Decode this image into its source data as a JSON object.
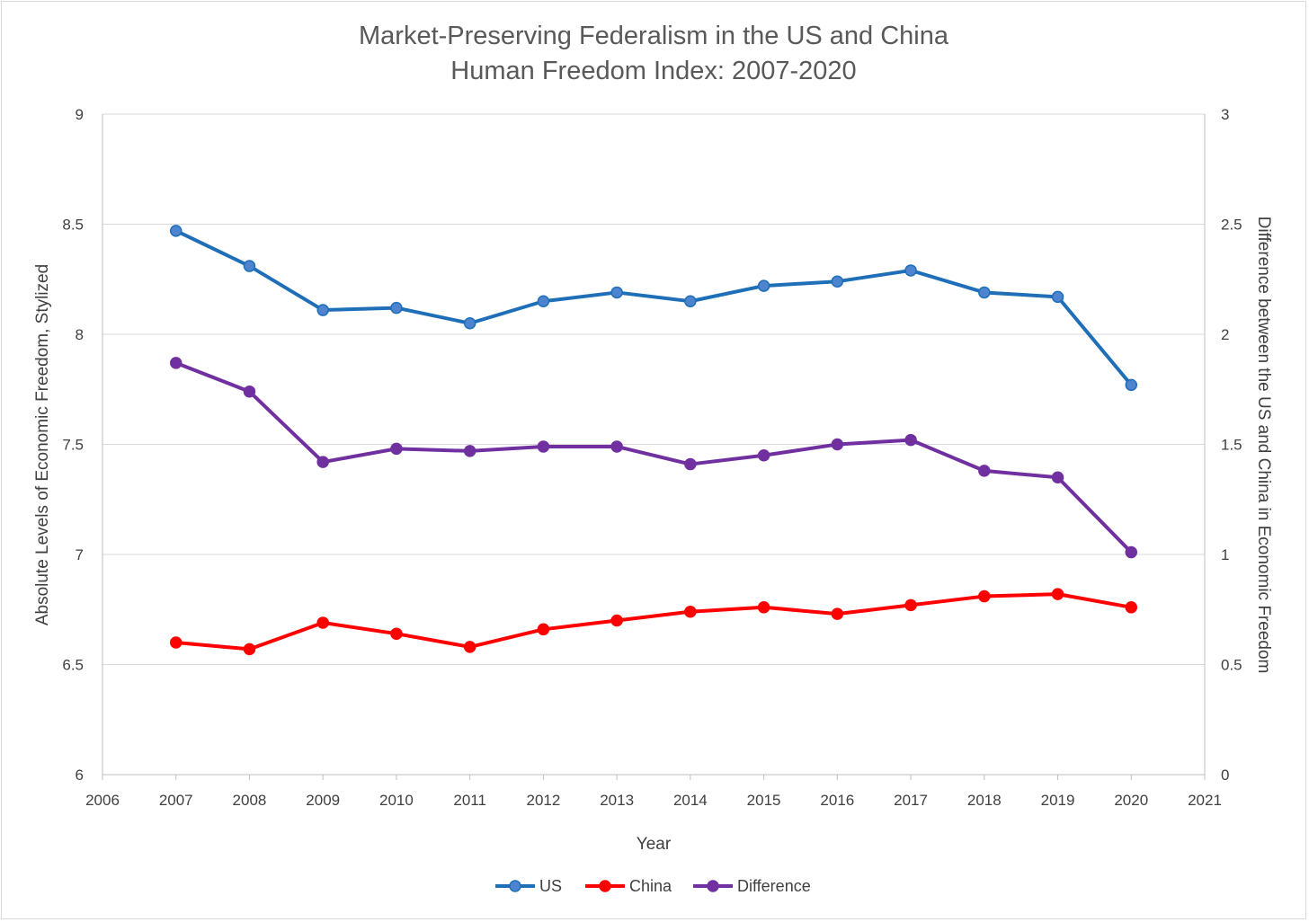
{
  "chart_data": {
    "type": "line",
    "title": "Market-Preserving Federalism in the US and China",
    "subtitle": "Human Freedom Index:  2007-2020",
    "xlabel": "Year",
    "ylabel": "Absolute Levels of Economic Freedom, Stylized",
    "y2label": "Difference between the US and China in Economic Freedom",
    "xlim": [
      2006,
      2021
    ],
    "ylim": [
      6,
      9
    ],
    "y2lim": [
      0,
      3
    ],
    "x_ticks": [
      "2006",
      "2007",
      "2008",
      "2009",
      "2010",
      "2011",
      "2012",
      "2013",
      "2014",
      "2015",
      "2016",
      "2017",
      "2018",
      "2019",
      "2020",
      "2021"
    ],
    "y_ticks": [
      "6",
      "6.5",
      "7",
      "7.5",
      "8",
      "8.5",
      "9"
    ],
    "y2_ticks": [
      "0",
      "0.5",
      "1",
      "1.5",
      "2",
      "2.5",
      "3"
    ],
    "grid": true,
    "legend_position": "bottom",
    "x": [
      2007,
      2008,
      2009,
      2010,
      2011,
      2012,
      2013,
      2014,
      2015,
      2016,
      2017,
      2018,
      2019,
      2020
    ],
    "series": [
      {
        "name": "US",
        "axis": "left",
        "color": "#1f6fb8",
        "marker_color": "#4e84cf",
        "values": [
          8.47,
          8.31,
          8.11,
          8.12,
          8.05,
          8.15,
          8.19,
          8.15,
          8.22,
          8.24,
          8.29,
          8.19,
          8.17,
          7.77
        ]
      },
      {
        "name": "China",
        "axis": "left",
        "color": "#ff0000",
        "marker_color": "#ff0000",
        "values": [
          6.6,
          6.57,
          6.69,
          6.64,
          6.58,
          6.66,
          6.7,
          6.74,
          6.76,
          6.73,
          6.77,
          6.81,
          6.82,
          6.76
        ]
      },
      {
        "name": "Difference",
        "axis": "right",
        "color": "#7030a0",
        "marker_color": "#7030a0",
        "values": [
          1.87,
          1.74,
          1.42,
          1.48,
          1.47,
          1.49,
          1.49,
          1.41,
          1.45,
          1.5,
          1.52,
          1.38,
          1.35,
          1.01
        ]
      }
    ]
  }
}
